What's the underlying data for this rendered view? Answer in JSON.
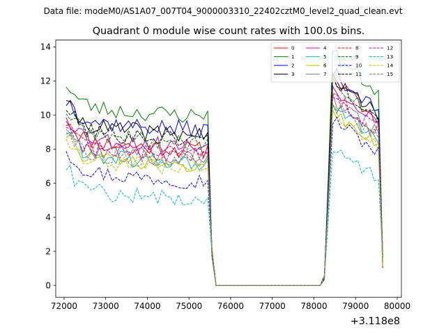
{
  "page": {
    "suptitle": "Data file: modeM0/AS1A07_007T04_9000003310_22402cztM0_level2_quad_clean.evt"
  },
  "chart_data": {
    "type": "line",
    "title": "Quadrant 0 module wise count rates with 100.0s bins.",
    "xlabel": "",
    "ylabel": "",
    "x_offset_label": "+3.118e8",
    "xlim": [
      71800,
      80100
    ],
    "ylim": [
      -0.7,
      14.4
    ],
    "xticks": [
      72000,
      73000,
      74000,
      75000,
      76000,
      77000,
      78000,
      79000,
      80000
    ],
    "xtick_labels": [
      "72000",
      "73000",
      "74000",
      "75000",
      "76000",
      "77000",
      "78000",
      "79000",
      "80000"
    ],
    "yticks": [
      0,
      2,
      4,
      6,
      8,
      10,
      12,
      14
    ],
    "ytick_labels": [
      "0",
      "2",
      "4",
      "6",
      "8",
      "10",
      "12",
      "14"
    ],
    "grid": false,
    "legend_position": "top-right",
    "legend_columns": 4,
    "x_start": 72050,
    "x_step": 100,
    "n_points": 77,
    "gap_start_index": 36,
    "gap_end_index": 62,
    "series": [
      {
        "name": "0",
        "color": "#ff0000",
        "dash": "solid",
        "seg1_level": 8.4,
        "seg2_peak": 12.2,
        "seg2_end": 9.3,
        "seed": 11
      },
      {
        "name": "1",
        "color": "#008000",
        "dash": "solid",
        "seg1_level": 10.4,
        "seg2_peak": 13.6,
        "seg2_end": 11.1,
        "seed": 23
      },
      {
        "name": "2",
        "color": "#0000ff",
        "dash": "solid",
        "seg1_level": 9.6,
        "seg2_peak": 12.5,
        "seg2_end": 10.0,
        "seed": 37
      },
      {
        "name": "3",
        "color": "#000000",
        "dash": "solid",
        "seg1_level": 9.3,
        "seg2_peak": 12.1,
        "seg2_end": 9.9,
        "seed": 41
      },
      {
        "name": "4",
        "color": "#c000c0",
        "dash": "solid",
        "seg1_level": 8.6,
        "seg2_peak": 11.6,
        "seg2_end": 9.6,
        "seed": 53
      },
      {
        "name": "5",
        "color": "#00bfbf",
        "dash": "solid",
        "seg1_level": 7.6,
        "seg2_peak": 10.4,
        "seg2_end": 8.5,
        "seed": 61
      },
      {
        "name": "6",
        "color": "#bfbf00",
        "dash": "solid",
        "seg1_level": 7.4,
        "seg2_peak": 10.2,
        "seg2_end": 8.3,
        "seed": 73
      },
      {
        "name": "7",
        "color": "#808080",
        "dash": "solid",
        "seg1_level": 7.9,
        "seg2_peak": 10.9,
        "seg2_end": 8.8,
        "seed": 79
      },
      {
        "name": "8",
        "color": "#ff0000",
        "dash": "dashed",
        "seg1_level": 8.1,
        "seg2_peak": 11.2,
        "seg2_end": 9.0,
        "seed": 83
      },
      {
        "name": "9",
        "color": "#008000",
        "dash": "dashed",
        "seg1_level": 8.8,
        "seg2_peak": 11.8,
        "seg2_end": 9.7,
        "seed": 89
      },
      {
        "name": "10",
        "color": "#0000ff",
        "dash": "dashed",
        "seg1_level": 6.6,
        "seg2_peak": 9.8,
        "seg2_end": 7.6,
        "seed": 97
      },
      {
        "name": "11",
        "color": "#000000",
        "dash": "dashed",
        "seg1_level": 9.0,
        "seg2_peak": 12.0,
        "seg2_end": 9.8,
        "seed": 101
      },
      {
        "name": "12",
        "color": "#c000c0",
        "dash": "dashed",
        "seg1_level": 8.0,
        "seg2_peak": 11.0,
        "seg2_end": 8.9,
        "seed": 103
      },
      {
        "name": "13",
        "color": "#00bfbf",
        "dash": "dashed",
        "seg1_level": 5.5,
        "seg2_peak": 8.2,
        "seg2_end": 6.1,
        "seed": 107
      },
      {
        "name": "14",
        "color": "#bfbf00",
        "dash": "dashed",
        "seg1_level": 7.3,
        "seg2_peak": 10.3,
        "seg2_end": 8.0,
        "seed": 109
      },
      {
        "name": "15",
        "color": "#808080",
        "dash": "dashed",
        "seg1_level": 7.7,
        "seg2_peak": 10.6,
        "seg2_end": 8.4,
        "seed": 113
      }
    ]
  }
}
